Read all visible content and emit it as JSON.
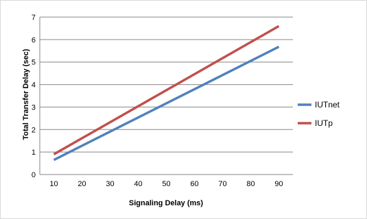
{
  "chart_data": {
    "type": "line",
    "title": "",
    "xlabel": "Signaling Delay (ms)",
    "ylabel": "Total Transfer Delay (sec)",
    "x": [
      10,
      90
    ],
    "xticks": [
      10,
      20,
      30,
      40,
      50,
      60,
      70,
      80,
      90
    ],
    "xlim": [
      5,
      95
    ],
    "ylim": [
      0,
      7
    ],
    "yticks": [
      0,
      1,
      2,
      3,
      4,
      5,
      6,
      7
    ],
    "grid": "horizontal",
    "legend": "right",
    "series": [
      {
        "name": "IUTnet",
        "color": "#4f81bd",
        "values": [
          0.65,
          5.68
        ]
      },
      {
        "name": "IUTp",
        "color": "#c0504d",
        "values": [
          0.9,
          6.6
        ]
      }
    ]
  }
}
